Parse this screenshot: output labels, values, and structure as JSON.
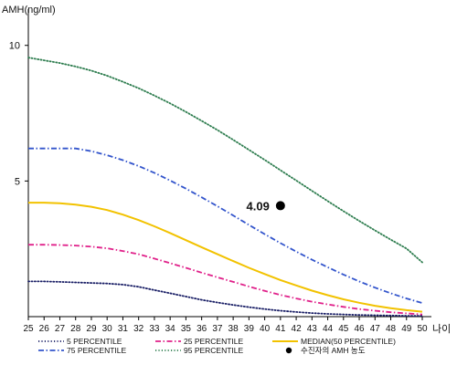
{
  "chart_data": {
    "type": "line",
    "ylabel": "AMH(ng/ml)",
    "xlabel": "나이",
    "x": [
      25,
      26,
      27,
      28,
      29,
      30,
      31,
      32,
      33,
      34,
      35,
      36,
      37,
      38,
      39,
      40,
      41,
      42,
      43,
      44,
      45,
      46,
      47,
      48,
      49,
      50
    ],
    "xlim": [
      25,
      50
    ],
    "ylim": [
      0,
      11
    ],
    "yticks": [
      5,
      10
    ],
    "grid": false,
    "legend_position": "bottom",
    "series": [
      {
        "name": "5 PERCENTILE",
        "color": "#1a1f66",
        "style": "dotted",
        "values": [
          1.3,
          1.3,
          1.28,
          1.26,
          1.24,
          1.22,
          1.18,
          1.1,
          0.98,
          0.86,
          0.74,
          0.62,
          0.52,
          0.43,
          0.35,
          0.28,
          0.22,
          0.17,
          0.13,
          0.1,
          0.08,
          0.06,
          0.05,
          0.04,
          0.03,
          0.03
        ]
      },
      {
        "name": "25 PERCENTILE",
        "color": "#e0218a",
        "style": "dashdot",
        "values": [
          2.65,
          2.65,
          2.64,
          2.62,
          2.58,
          2.52,
          2.42,
          2.3,
          2.14,
          1.97,
          1.8,
          1.62,
          1.45,
          1.28,
          1.11,
          0.95,
          0.8,
          0.67,
          0.55,
          0.45,
          0.36,
          0.28,
          0.22,
          0.16,
          0.12,
          0.08
        ]
      },
      {
        "name": "MEDIAN(50 PERCENTILE)",
        "color": "#f2c200",
        "style": "solid",
        "values": [
          4.2,
          4.2,
          4.18,
          4.13,
          4.05,
          3.93,
          3.76,
          3.56,
          3.33,
          3.08,
          2.82,
          2.56,
          2.3,
          2.05,
          1.8,
          1.57,
          1.35,
          1.15,
          0.96,
          0.79,
          0.64,
          0.51,
          0.4,
          0.31,
          0.24,
          0.18
        ]
      },
      {
        "name": "75 PERCENTILE",
        "color": "#3355cc",
        "style": "dashdot",
        "values": [
          6.2,
          6.2,
          6.2,
          6.2,
          6.1,
          5.95,
          5.77,
          5.55,
          5.3,
          5.02,
          4.72,
          4.4,
          4.07,
          3.73,
          3.38,
          3.04,
          2.71,
          2.4,
          2.1,
          1.82,
          1.55,
          1.3,
          1.07,
          0.86,
          0.67,
          0.5
        ]
      },
      {
        "name": "95 PERCENTILE",
        "color": "#2e7d4f",
        "style": "dotted",
        "values": [
          9.55,
          9.45,
          9.35,
          9.22,
          9.07,
          8.88,
          8.66,
          8.42,
          8.15,
          7.86,
          7.55,
          7.22,
          6.88,
          6.52,
          6.15,
          5.78,
          5.4,
          5.02,
          4.64,
          4.26,
          3.89,
          3.53,
          3.18,
          2.84,
          2.51,
          2.0
        ]
      }
    ],
    "patient": {
      "name": "수진자의 AMH 농도",
      "age": 41,
      "value": 4.09,
      "label": "4.09",
      "color": "#000000"
    },
    "legend_order": [
      "5 PERCENTILE",
      "25 PERCENTILE",
      "MEDIAN(50 PERCENTILE)",
      "75 PERCENTILE",
      "95 PERCENTILE",
      "수진자의 AMH 농도"
    ]
  }
}
